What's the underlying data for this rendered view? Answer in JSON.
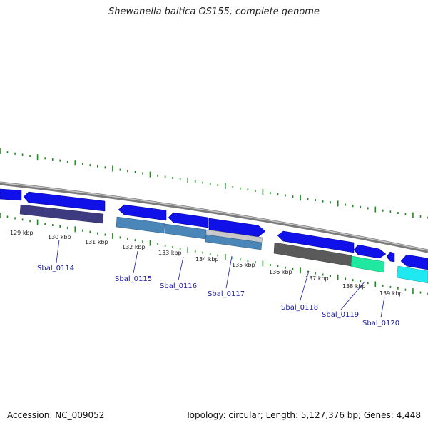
{
  "header": {
    "title": "Shewanella baltica OS155, complete genome"
  },
  "footer": {
    "accession": "Accession: NC_009052",
    "stats": "Topology: circular; Length: 5,127,376 bp; Genes: 4,448"
  },
  "colors": {
    "backbone": "#8c8c8c",
    "ticks": "#1a8c1a",
    "cds_forward": "#1010e8",
    "cds_reverse": "#1010e8",
    "cog_purple": "#3e3a80",
    "cog_steelblue": "#4a86b8",
    "cog_lightgray": "#c8c8c8",
    "cog_darkgray": "#5a5a5a",
    "cog_green": "#20e8a0",
    "cog_cyan": "#20e8f0",
    "label_color": "#1a1aa6"
  },
  "scale_labels": [
    "129 kbp",
    "130 kbp",
    "131 kbp",
    "132 kbp",
    "133 kbp",
    "134 kbp",
    "135 kbp",
    "136 kbp",
    "137 kbp",
    "138 kbp",
    "139 kbp"
  ],
  "gene_labels": [
    "Sbal_0114",
    "Sbal_0115",
    "Sbal_0116",
    "Sbal_0117",
    "Sbal_0118",
    "Sbal_0119",
    "Sbal_0120"
  ]
}
